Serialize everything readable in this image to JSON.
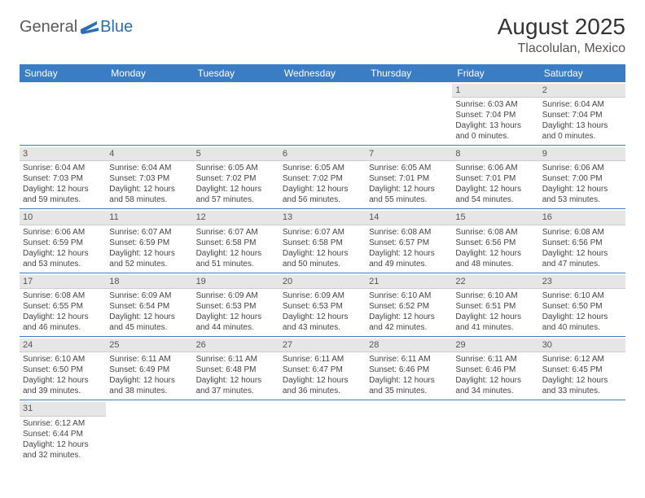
{
  "logo": {
    "text1": "General",
    "text2": "Blue"
  },
  "title": {
    "month": "August 2025",
    "location": "Tlacolulan, Mexico"
  },
  "colors": {
    "header_bg": "#3b7dc4",
    "header_fg": "#ffffff",
    "daynum_bg": "#e6e6e6",
    "cell_border": "#3b7dc4",
    "body_text": "#444444"
  },
  "weekdays": [
    "Sunday",
    "Monday",
    "Tuesday",
    "Wednesday",
    "Thursday",
    "Friday",
    "Saturday"
  ],
  "weeks": [
    [
      null,
      null,
      null,
      null,
      null,
      {
        "n": "1",
        "sr": "Sunrise: 6:03 AM",
        "ss": "Sunset: 7:04 PM",
        "d1": "Daylight: 13 hours",
        "d2": "and 0 minutes."
      },
      {
        "n": "2",
        "sr": "Sunrise: 6:04 AM",
        "ss": "Sunset: 7:04 PM",
        "d1": "Daylight: 13 hours",
        "d2": "and 0 minutes."
      }
    ],
    [
      {
        "n": "3",
        "sr": "Sunrise: 6:04 AM",
        "ss": "Sunset: 7:03 PM",
        "d1": "Daylight: 12 hours",
        "d2": "and 59 minutes."
      },
      {
        "n": "4",
        "sr": "Sunrise: 6:04 AM",
        "ss": "Sunset: 7:03 PM",
        "d1": "Daylight: 12 hours",
        "d2": "and 58 minutes."
      },
      {
        "n": "5",
        "sr": "Sunrise: 6:05 AM",
        "ss": "Sunset: 7:02 PM",
        "d1": "Daylight: 12 hours",
        "d2": "and 57 minutes."
      },
      {
        "n": "6",
        "sr": "Sunrise: 6:05 AM",
        "ss": "Sunset: 7:02 PM",
        "d1": "Daylight: 12 hours",
        "d2": "and 56 minutes."
      },
      {
        "n": "7",
        "sr": "Sunrise: 6:05 AM",
        "ss": "Sunset: 7:01 PM",
        "d1": "Daylight: 12 hours",
        "d2": "and 55 minutes."
      },
      {
        "n": "8",
        "sr": "Sunrise: 6:06 AM",
        "ss": "Sunset: 7:01 PM",
        "d1": "Daylight: 12 hours",
        "d2": "and 54 minutes."
      },
      {
        "n": "9",
        "sr": "Sunrise: 6:06 AM",
        "ss": "Sunset: 7:00 PM",
        "d1": "Daylight: 12 hours",
        "d2": "and 53 minutes."
      }
    ],
    [
      {
        "n": "10",
        "sr": "Sunrise: 6:06 AM",
        "ss": "Sunset: 6:59 PM",
        "d1": "Daylight: 12 hours",
        "d2": "and 53 minutes."
      },
      {
        "n": "11",
        "sr": "Sunrise: 6:07 AM",
        "ss": "Sunset: 6:59 PM",
        "d1": "Daylight: 12 hours",
        "d2": "and 52 minutes."
      },
      {
        "n": "12",
        "sr": "Sunrise: 6:07 AM",
        "ss": "Sunset: 6:58 PM",
        "d1": "Daylight: 12 hours",
        "d2": "and 51 minutes."
      },
      {
        "n": "13",
        "sr": "Sunrise: 6:07 AM",
        "ss": "Sunset: 6:58 PM",
        "d1": "Daylight: 12 hours",
        "d2": "and 50 minutes."
      },
      {
        "n": "14",
        "sr": "Sunrise: 6:08 AM",
        "ss": "Sunset: 6:57 PM",
        "d1": "Daylight: 12 hours",
        "d2": "and 49 minutes."
      },
      {
        "n": "15",
        "sr": "Sunrise: 6:08 AM",
        "ss": "Sunset: 6:56 PM",
        "d1": "Daylight: 12 hours",
        "d2": "and 48 minutes."
      },
      {
        "n": "16",
        "sr": "Sunrise: 6:08 AM",
        "ss": "Sunset: 6:56 PM",
        "d1": "Daylight: 12 hours",
        "d2": "and 47 minutes."
      }
    ],
    [
      {
        "n": "17",
        "sr": "Sunrise: 6:08 AM",
        "ss": "Sunset: 6:55 PM",
        "d1": "Daylight: 12 hours",
        "d2": "and 46 minutes."
      },
      {
        "n": "18",
        "sr": "Sunrise: 6:09 AM",
        "ss": "Sunset: 6:54 PM",
        "d1": "Daylight: 12 hours",
        "d2": "and 45 minutes."
      },
      {
        "n": "19",
        "sr": "Sunrise: 6:09 AM",
        "ss": "Sunset: 6:53 PM",
        "d1": "Daylight: 12 hours",
        "d2": "and 44 minutes."
      },
      {
        "n": "20",
        "sr": "Sunrise: 6:09 AM",
        "ss": "Sunset: 6:53 PM",
        "d1": "Daylight: 12 hours",
        "d2": "and 43 minutes."
      },
      {
        "n": "21",
        "sr": "Sunrise: 6:10 AM",
        "ss": "Sunset: 6:52 PM",
        "d1": "Daylight: 12 hours",
        "d2": "and 42 minutes."
      },
      {
        "n": "22",
        "sr": "Sunrise: 6:10 AM",
        "ss": "Sunset: 6:51 PM",
        "d1": "Daylight: 12 hours",
        "d2": "and 41 minutes."
      },
      {
        "n": "23",
        "sr": "Sunrise: 6:10 AM",
        "ss": "Sunset: 6:50 PM",
        "d1": "Daylight: 12 hours",
        "d2": "and 40 minutes."
      }
    ],
    [
      {
        "n": "24",
        "sr": "Sunrise: 6:10 AM",
        "ss": "Sunset: 6:50 PM",
        "d1": "Daylight: 12 hours",
        "d2": "and 39 minutes."
      },
      {
        "n": "25",
        "sr": "Sunrise: 6:11 AM",
        "ss": "Sunset: 6:49 PM",
        "d1": "Daylight: 12 hours",
        "d2": "and 38 minutes."
      },
      {
        "n": "26",
        "sr": "Sunrise: 6:11 AM",
        "ss": "Sunset: 6:48 PM",
        "d1": "Daylight: 12 hours",
        "d2": "and 37 minutes."
      },
      {
        "n": "27",
        "sr": "Sunrise: 6:11 AM",
        "ss": "Sunset: 6:47 PM",
        "d1": "Daylight: 12 hours",
        "d2": "and 36 minutes."
      },
      {
        "n": "28",
        "sr": "Sunrise: 6:11 AM",
        "ss": "Sunset: 6:46 PM",
        "d1": "Daylight: 12 hours",
        "d2": "and 35 minutes."
      },
      {
        "n": "29",
        "sr": "Sunrise: 6:11 AM",
        "ss": "Sunset: 6:46 PM",
        "d1": "Daylight: 12 hours",
        "d2": "and 34 minutes."
      },
      {
        "n": "30",
        "sr": "Sunrise: 6:12 AM",
        "ss": "Sunset: 6:45 PM",
        "d1": "Daylight: 12 hours",
        "d2": "and 33 minutes."
      }
    ],
    [
      {
        "n": "31",
        "sr": "Sunrise: 6:12 AM",
        "ss": "Sunset: 6:44 PM",
        "d1": "Daylight: 12 hours",
        "d2": "and 32 minutes."
      },
      null,
      null,
      null,
      null,
      null,
      null
    ]
  ]
}
